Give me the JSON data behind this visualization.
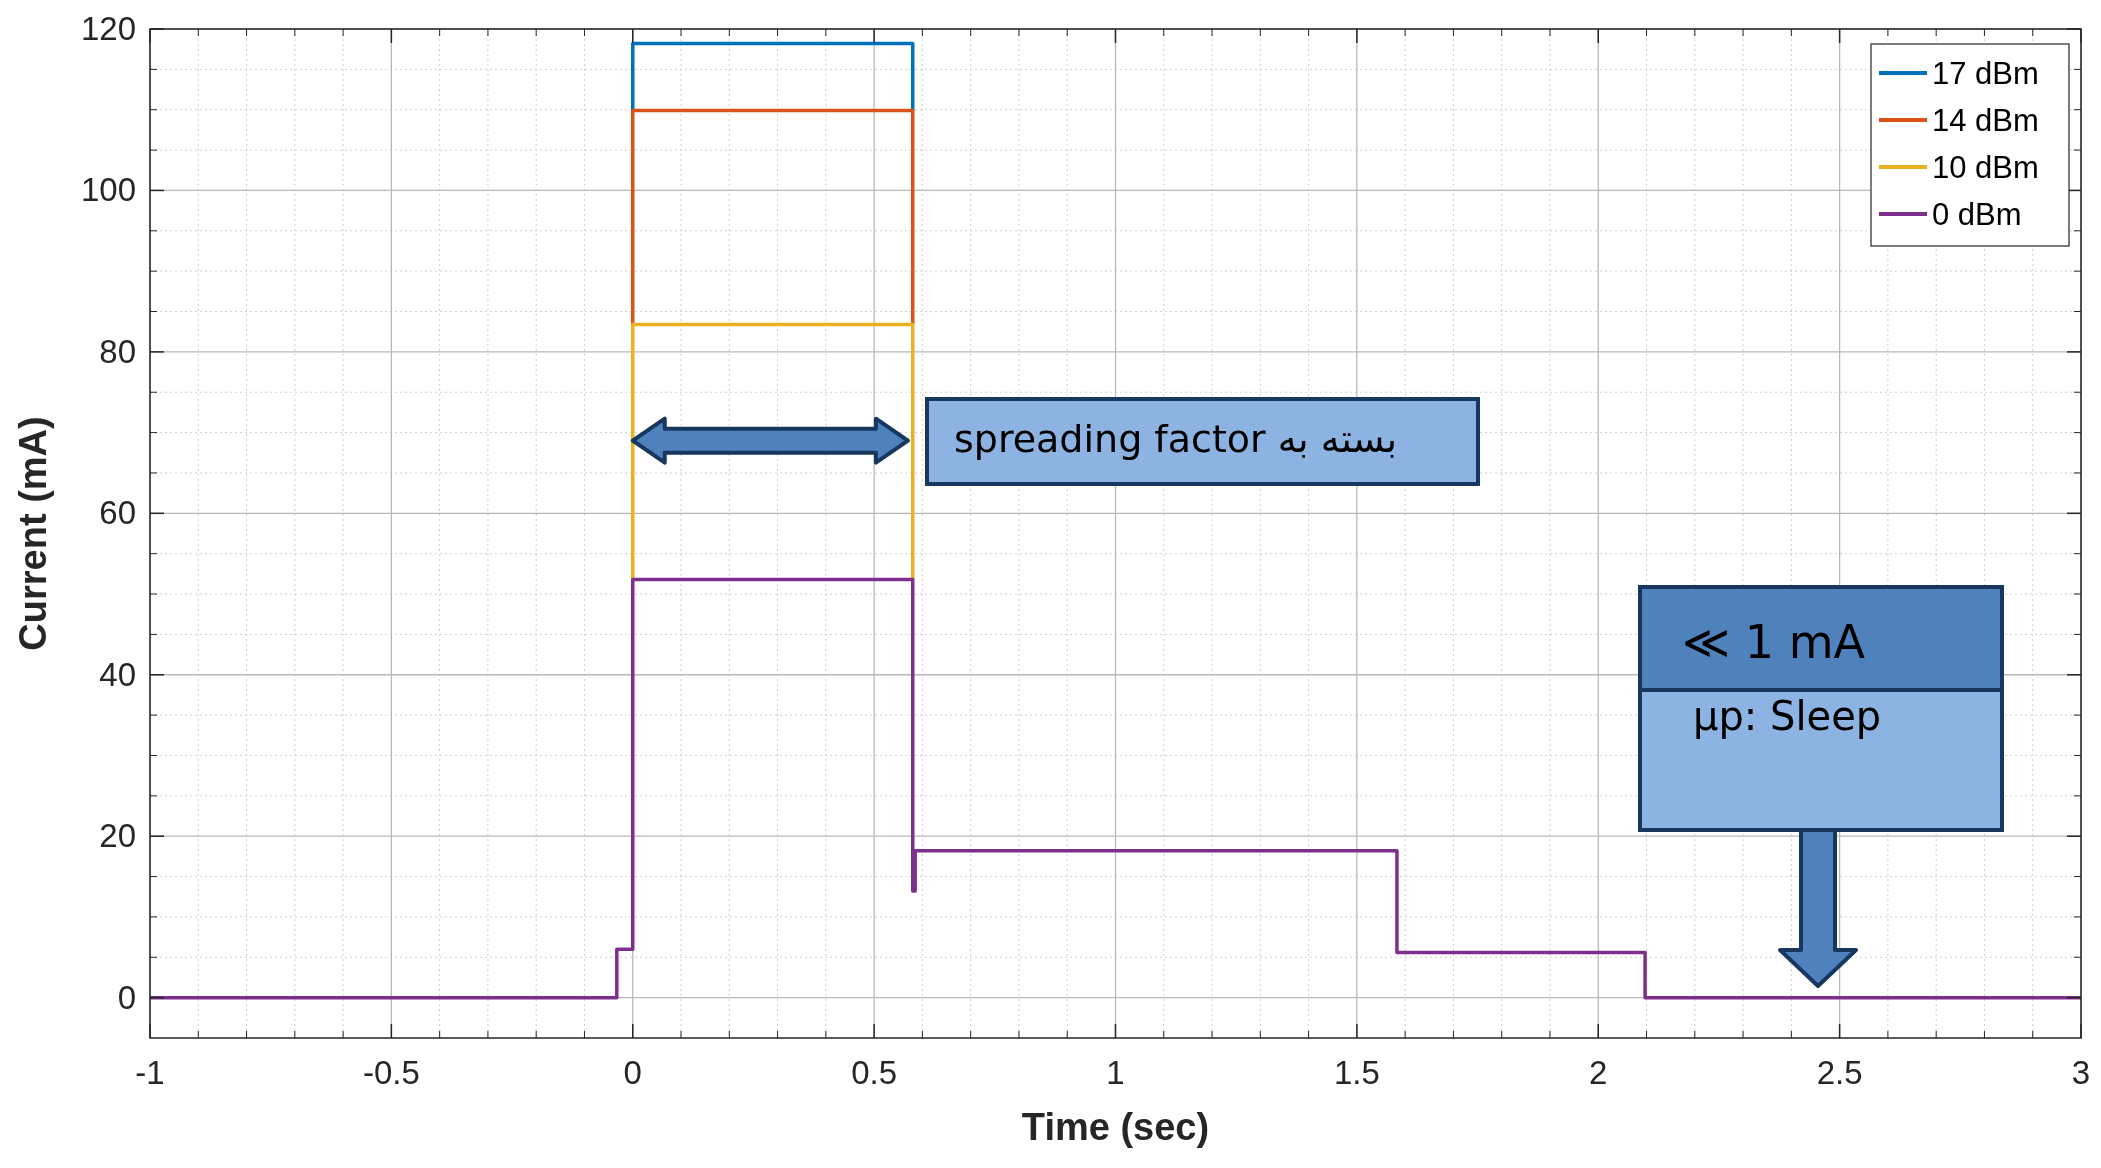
{
  "chart_data": {
    "type": "line",
    "xlabel": "Time (sec)",
    "ylabel": "Current (mA)",
    "xlim": [
      -1,
      3
    ],
    "ylim": [
      -5,
      120
    ],
    "xticks": [
      -1,
      -0.5,
      0,
      0.5,
      1,
      1.5,
      2,
      2.5,
      3
    ],
    "yticks": [
      0,
      20,
      40,
      60,
      80,
      100,
      120
    ],
    "grid": true,
    "legend": "top right",
    "line_style": "solid",
    "marker": "none",
    "series": [
      {
        "name": "17 dBm",
        "color": "#0072bd",
        "x": [
          0,
          0,
          0.58,
          0.58
        ],
        "values": [
          109.9,
          118.2,
          118.2,
          109.9
        ]
      },
      {
        "name": "14 dBm",
        "color": "#d95319",
        "x": [
          0,
          0,
          0.58,
          0.58
        ],
        "values": [
          83.4,
          109.9,
          109.9,
          83.4
        ]
      },
      {
        "name": "10 dBm",
        "color": "#edb120",
        "x": [
          0,
          0,
          0.58,
          0.58
        ],
        "values": [
          51.8,
          83.4,
          83.4,
          51.8
        ]
      },
      {
        "name": "0 dBm",
        "color": "#7e2f8e",
        "x": [
          -1,
          -0.033,
          -0.033,
          0,
          0,
          0.58,
          0.58,
          0.585,
          0.585,
          1.583,
          1.583,
          2.097,
          2.097,
          3
        ],
        "values": [
          0,
          0,
          6,
          6,
          51.8,
          51.8,
          13.2,
          13.2,
          18.2,
          18.2,
          5.6,
          5.6,
          0,
          0
        ]
      }
    ],
    "annotations": [
      "spreading factor بسته به",
      "≪ 1 mA",
      "µp: Sleep"
    ]
  }
}
